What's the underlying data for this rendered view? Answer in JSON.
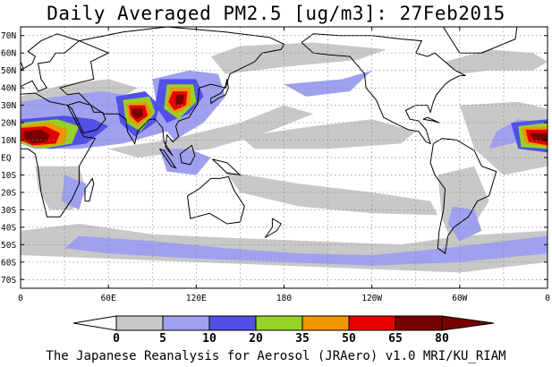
{
  "title": "Daily Averaged PM2.5 [ug/m3]: 27Feb2015",
  "credit": "The Japanese Reanalysis for Aerosol (JRAero) v1.0 MRI/KU_RIAM",
  "lat_labels": [
    "70N",
    "60N",
    "50N",
    "40N",
    "30N",
    "20N",
    "10N",
    "EQ",
    "10S",
    "20S",
    "30S",
    "40S",
    "50S",
    "60S",
    "70S"
  ],
  "lon_labels": [
    "0",
    "60E",
    "120E",
    "180",
    "120W",
    "60W",
    "0"
  ],
  "colorbar": {
    "levels": [
      "0",
      "5",
      "10",
      "20",
      "35",
      "50",
      "65",
      "80"
    ],
    "colors": [
      "#ffffff",
      "#c8c8c8",
      "#a0a0f0",
      "#5050e6",
      "#96d228",
      "#f09600",
      "#e60000",
      "#780000"
    ]
  },
  "chart_data": {
    "type": "heatmap",
    "title": "Daily Averaged PM2.5 [ug/m3]: 27Feb2015",
    "units": "ug/m3",
    "date": "27Feb2015",
    "projection": "cylindrical equidistant, 0 to 360 longitude",
    "lat_range": [
      -75,
      75
    ],
    "lon_range": [
      0,
      360
    ],
    "contour_levels": [
      0,
      5,
      10,
      20,
      35,
      50,
      65,
      80
    ],
    "level_colors": [
      "#ffffff",
      "#c8c8c8",
      "#a0a0f0",
      "#5050e6",
      "#96d228",
      "#f09600",
      "#e60000",
      "#780000"
    ],
    "grid": "dotted, every 10 degrees latitude and 30 degrees longitude",
    "hotspots": [
      {
        "region": "West Africa (Sahel)",
        "lon": 5,
        "lat": 12,
        "max_level": 80
      },
      {
        "region": "West Africa (Sahel, Atlantic edge)",
        "lon": 345,
        "lat": 12,
        "max_level": 80
      },
      {
        "region": "Indo-Gangetic Plain",
        "lon": 80,
        "lat": 25,
        "max_level": 80
      },
      {
        "region": "East China",
        "lon": 112,
        "lat": 35,
        "max_level": 80
      },
      {
        "region": "Southeast Asia",
        "lon": 103,
        "lat": 17,
        "max_level": 65
      },
      {
        "region": "Arabia / Middle East",
        "lon": 45,
        "lat": 25,
        "max_level": 50
      }
    ]
  }
}
